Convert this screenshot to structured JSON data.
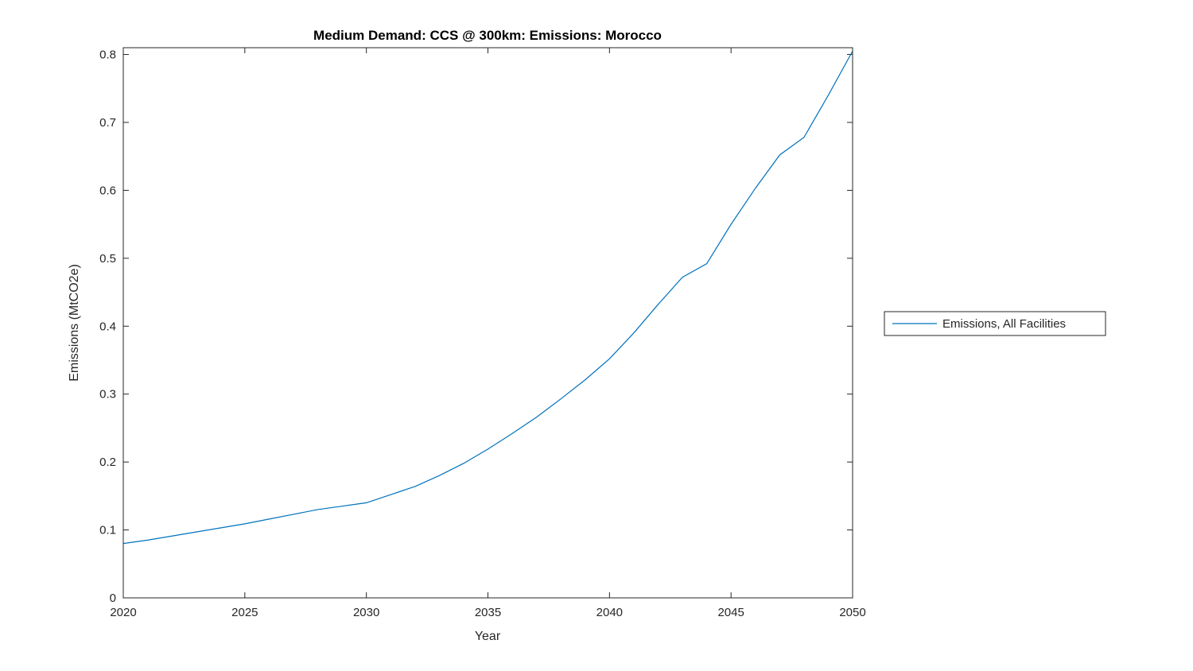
{
  "chart_data": {
    "type": "line",
    "title": "Medium Demand: CCS @ 300km: Emissions: Morocco",
    "xlabel": "Year",
    "ylabel": "Emissions (MtCO2e)",
    "xlim": [
      2020,
      2050
    ],
    "ylim": [
      0,
      0.81
    ],
    "xticks": [
      2020,
      2025,
      2030,
      2035,
      2040,
      2045,
      2050
    ],
    "yticks": [
      0,
      0.1,
      0.2,
      0.3,
      0.4,
      0.5,
      0.6,
      0.7,
      0.8
    ],
    "grid": false,
    "legend_position": "right-outside",
    "line_color": "#0072BD",
    "series": [
      {
        "name": "Emissions, All Facilities",
        "x": [
          2020,
          2021,
          2022,
          2023,
          2024,
          2025,
          2026,
          2027,
          2028,
          2029,
          2030,
          2031,
          2032,
          2033,
          2034,
          2035,
          2036,
          2037,
          2038,
          2039,
          2040,
          2041,
          2042,
          2043,
          2044,
          2045,
          2046,
          2047,
          2048,
          2049,
          2050
        ],
        "values": [
          0.08,
          0.085,
          0.091,
          0.097,
          0.103,
          0.109,
          0.116,
          0.123,
          0.13,
          0.135,
          0.14,
          0.152,
          0.164,
          0.18,
          0.198,
          0.219,
          0.242,
          0.266,
          0.293,
          0.321,
          0.352,
          0.39,
          0.432,
          0.472,
          0.492,
          0.55,
          0.603,
          0.652,
          0.678,
          0.74,
          0.805
        ]
      }
    ],
    "legend": {
      "entries": [
        "Emissions, All Facilities"
      ]
    }
  }
}
